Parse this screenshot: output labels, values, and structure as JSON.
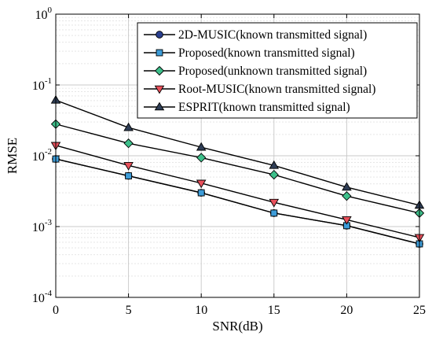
{
  "chart_data": {
    "type": "line",
    "xlabel": "SNR(dB)",
    "ylabel": "RMSE",
    "x": [
      0,
      5,
      10,
      15,
      20,
      25
    ],
    "xlim": [
      0,
      25
    ],
    "ylim": [
      0.0001,
      1
    ],
    "yscale": "log",
    "xticks": [
      "0",
      "5",
      "10",
      "15",
      "20",
      "25"
    ],
    "yticks": [
      {
        "base": "10",
        "exp": "-4"
      },
      {
        "base": "10",
        "exp": "-3"
      },
      {
        "base": "10",
        "exp": "-2"
      },
      {
        "base": "10",
        "exp": "-1"
      },
      {
        "base": "10",
        "exp": "0"
      }
    ],
    "grid": true,
    "legend_position": "top-right",
    "series": [
      {
        "name": "2D-MUSIC(known transmitted signal)",
        "marker": "circle",
        "color": "#2a3f8f",
        "values": [
          0.009,
          0.0052,
          0.003,
          0.00155,
          0.00103,
          0.00057
        ]
      },
      {
        "name": "Proposed(known transmitted signal)",
        "marker": "square",
        "color": "#3d9cd8",
        "values": [
          0.009,
          0.0052,
          0.003,
          0.00155,
          0.00103,
          0.00057
        ]
      },
      {
        "name": "Proposed(unknown transmitted signal)",
        "marker": "diamond",
        "color": "#3dbf8a",
        "values": [
          0.028,
          0.015,
          0.0094,
          0.0054,
          0.0027,
          0.00155
        ]
      },
      {
        "name": "Root-MUSIC(known transmitted signal)",
        "marker": "triangle-down",
        "color": "#e8505b",
        "values": [
          0.014,
          0.0073,
          0.0041,
          0.0022,
          0.00125,
          0.0007
        ]
      },
      {
        "name": "ESPRIT(known transmitted signal)",
        "marker": "triangle-up",
        "color": "#2e3d55",
        "values": [
          0.061,
          0.025,
          0.0132,
          0.0073,
          0.0036,
          0.002
        ]
      }
    ]
  }
}
